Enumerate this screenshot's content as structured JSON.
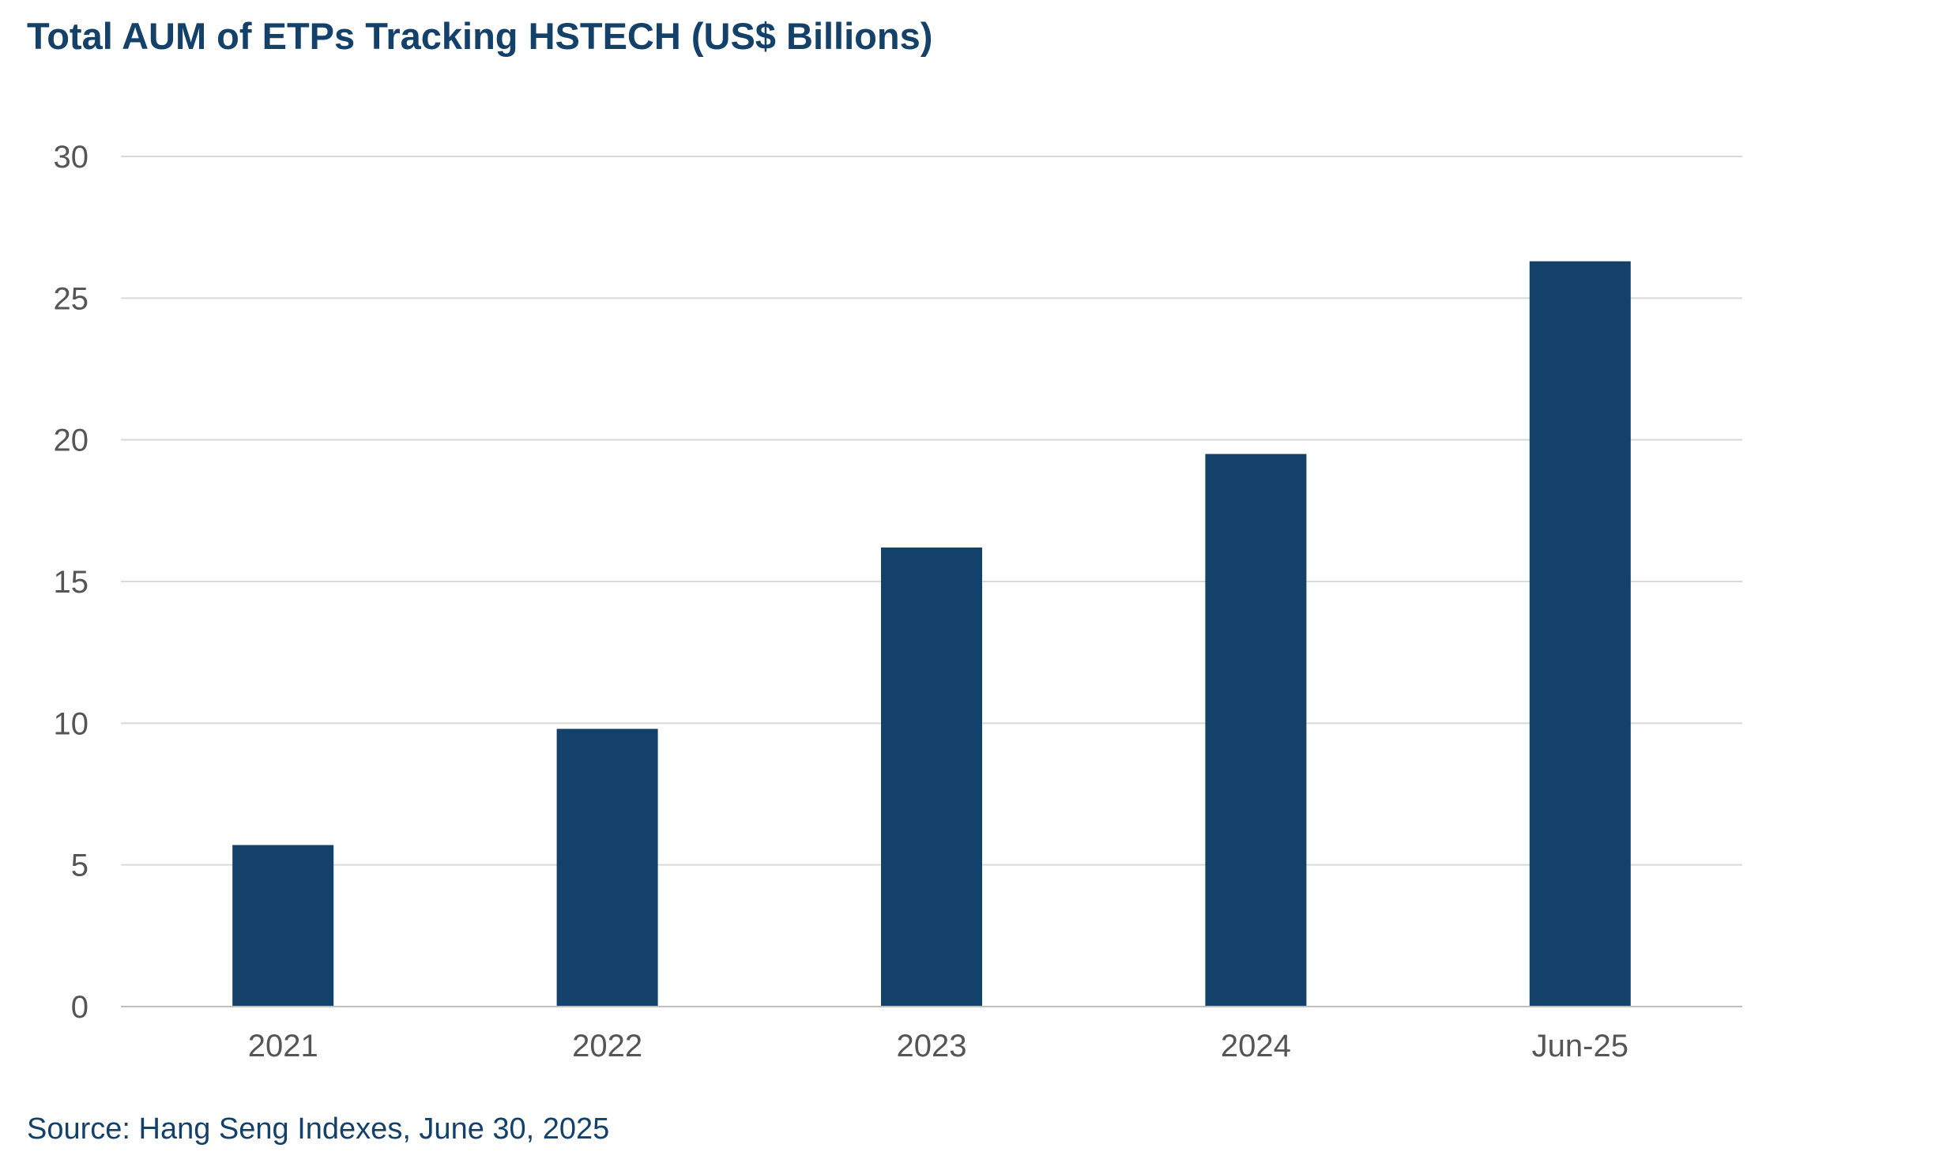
{
  "title": "Total AUM of ETPs Tracking HSTECH (US$ Billions)",
  "source": "Source: Hang Seng Indexes, June 30, 2025",
  "chart_data": {
    "type": "bar",
    "title": "Total AUM of ETPs Tracking HSTECH (US$ Billions)",
    "xlabel": "",
    "ylabel": "",
    "categories": [
      "2021",
      "2022",
      "2023",
      "2024",
      "Jun-25"
    ],
    "values": [
      5.7,
      9.8,
      16.2,
      19.5,
      26.3
    ],
    "ylim": [
      0,
      30
    ],
    "yticks": [
      "0",
      "5",
      "10",
      "15",
      "20",
      "25",
      "30"
    ],
    "grid": true,
    "legend": "none",
    "colors": {
      "bar": "#14416a",
      "grid": "#d9d9d9",
      "axis": "#bfbfbf",
      "tick_text": "#555555",
      "title": "#14416a"
    }
  }
}
